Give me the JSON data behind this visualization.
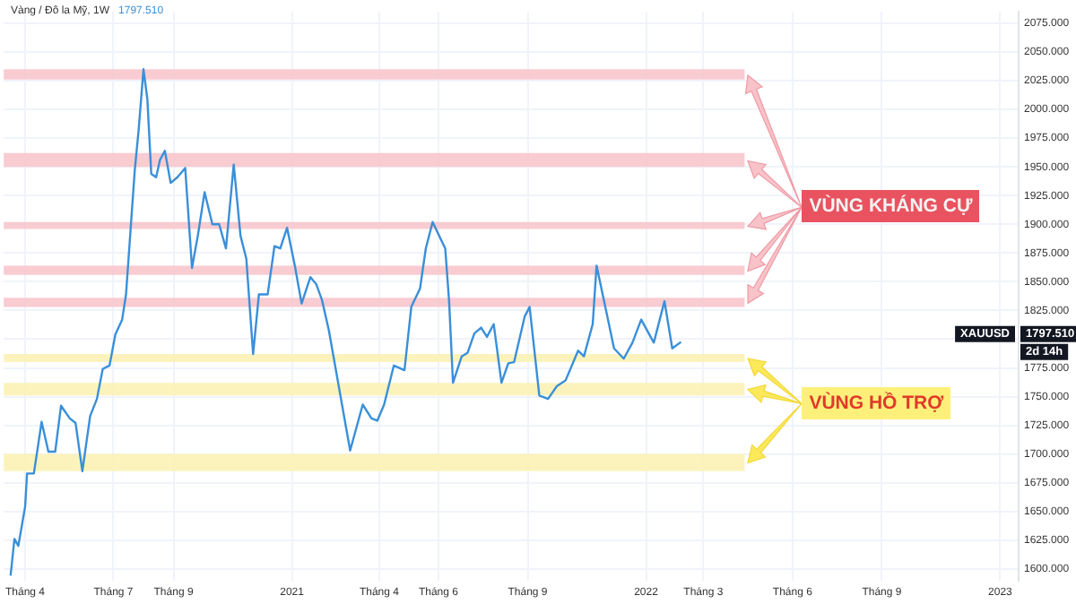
{
  "chart_data": {
    "type": "line",
    "title": "Vàng / Đô la Mỹ, 1W",
    "subtitle": "1797.510",
    "x": [
      "2020-03-17",
      "2020-03-21",
      "2020-03-25",
      "2020-04-01",
      "2020-04-03",
      "2020-04-10",
      "2020-04-18",
      "2020-04-25",
      "2020-05-02",
      "2020-05-08",
      "2020-05-17",
      "2020-05-23",
      "2020-05-30",
      "2020-06-07",
      "2020-06-14",
      "2020-06-20",
      "2020-06-27",
      "2020-07-03",
      "2020-07-10",
      "2020-07-14",
      "2020-07-23",
      "2020-07-27",
      "2020-08-01",
      "2020-08-05",
      "2020-08-09",
      "2020-08-14",
      "2020-08-18",
      "2020-08-23",
      "2020-08-29",
      "2020-09-05",
      "2020-09-13",
      "2020-09-20",
      "2020-09-26",
      "2020-10-03",
      "2020-10-11",
      "2020-10-18",
      "2020-10-25",
      "2020-11-02",
      "2020-11-09",
      "2020-11-15",
      "2020-11-22",
      "2020-11-28",
      "2020-12-07",
      "2020-12-14",
      "2020-12-20",
      "2020-12-27",
      "2021-01-04",
      "2021-01-11",
      "2021-01-20",
      "2021-01-26",
      "2021-02-01",
      "2021-02-08",
      "2021-03-02",
      "2021-03-15",
      "2021-03-24",
      "2021-03-30",
      "2021-04-06",
      "2021-04-16",
      "2021-04-27",
      "2021-05-04",
      "2021-05-13",
      "2021-05-19",
      "2021-05-26",
      "2021-06-08",
      "2021-06-12",
      "2021-06-16",
      "2021-06-25",
      "2021-07-01",
      "2021-07-08",
      "2021-07-15",
      "2021-07-21",
      "2021-07-28",
      "2021-08-05",
      "2021-08-12",
      "2021-08-18",
      "2021-08-29",
      "2021-09-03",
      "2021-09-13",
      "2021-09-22",
      "2021-10-01",
      "2021-10-10",
      "2021-10-23",
      "2021-10-29",
      "2021-11-07",
      "2021-11-11",
      "2021-11-20",
      "2021-11-29",
      "2021-12-09",
      "2021-12-18",
      "2021-12-27",
      "2022-01-09",
      "2022-01-20",
      "2022-01-28",
      "2022-02-06"
    ],
    "series": [
      {
        "color": "#3a8fd9",
        "values": [
          1594,
          1626,
          1620,
          1654,
          1683,
          1683,
          1728,
          1702,
          1702,
          1742,
          1731,
          1727,
          1685,
          1733,
          1748,
          1774,
          1777,
          1804,
          1817,
          1839,
          1947,
          1982,
          2035,
          2009,
          1944,
          1941,
          1956,
          1964,
          1936,
          1941,
          1949,
          1862,
          1890,
          1928,
          1900,
          1900,
          1879,
          1952,
          1890,
          1870,
          1787,
          1839,
          1839,
          1881,
          1879,
          1897,
          1864,
          1831,
          1854,
          1848,
          1834,
          1808,
          1703,
          1743,
          1731,
          1729,
          1743,
          1777,
          1773,
          1828,
          1844,
          1879,
          1902,
          1879,
          1833,
          1762,
          1785,
          1788,
          1805,
          1810,
          1802,
          1813,
          1762,
          1779,
          1780,
          1820,
          1828,
          1751,
          1748,
          1759,
          1764,
          1790,
          1785,
          1813,
          1864,
          1828,
          1792,
          1783,
          1797,
          1817,
          1797,
          1833,
          1792,
          1797.51
        ]
      }
    ],
    "xlim": [
      "2020-03-10",
      "2023-01-20"
    ],
    "xticks": [
      {
        "value": "2020-04-01",
        "label": "Tháng 4"
      },
      {
        "value": "2020-07-01",
        "label": "Tháng 7"
      },
      {
        "value": "2020-09-01",
        "label": "Tháng 9"
      },
      {
        "value": "2021-01-01",
        "label": "2021"
      },
      {
        "value": "2021-04-01",
        "label": "Tháng 4"
      },
      {
        "value": "2021-06-01",
        "label": "Tháng 6"
      },
      {
        "value": "2021-09-01",
        "label": "Tháng 9"
      },
      {
        "value": "2022-01-01",
        "label": "2022"
      },
      {
        "value": "2022-03-01",
        "label": "Tháng 3"
      },
      {
        "value": "2022-06-01",
        "label": "Tháng 6"
      },
      {
        "value": "2022-09-01",
        "label": "Tháng 9"
      },
      {
        "value": "2023-01-01",
        "label": "2023"
      }
    ],
    "ylim": [
      1590,
      2085
    ],
    "yticks": [
      {
        "value": 1600,
        "label": "1600.000"
      },
      {
        "value": 1625,
        "label": "1625.000"
      },
      {
        "value": 1650,
        "label": "1650.000"
      },
      {
        "value": 1675,
        "label": "1675.000"
      },
      {
        "value": 1700,
        "label": "1700.000"
      },
      {
        "value": 1725,
        "label": "1725.000"
      },
      {
        "value": 1750,
        "label": "1750.000"
      },
      {
        "value": 1775,
        "label": "1775.000"
      },
      {
        "value": 1800,
        "label": null
      },
      {
        "value": 1825,
        "label": "1825.000"
      },
      {
        "value": 1850,
        "label": "1850.000"
      },
      {
        "value": 1875,
        "label": "1875.000"
      },
      {
        "value": 1900,
        "label": "1900.000"
      },
      {
        "value": 1925,
        "label": "1925.000"
      },
      {
        "value": 1950,
        "label": "1950.000"
      },
      {
        "value": 1975,
        "label": "1975.000"
      },
      {
        "value": 2000,
        "label": "2000.000"
      },
      {
        "value": 2025,
        "label": "2025.000"
      },
      {
        "value": 2050,
        "label": "2050.000"
      },
      {
        "value": 2075,
        "label": "2075.000"
      }
    ],
    "bands": [
      {
        "axis": "y",
        "from": 2026,
        "to": 2035,
        "color": "#f7c3c9"
      },
      {
        "axis": "y",
        "from": 1950,
        "to": 1962,
        "color": "#f7c3c9"
      },
      {
        "axis": "y",
        "from": 1896,
        "to": 1902,
        "color": "#f7c3c9"
      },
      {
        "axis": "y",
        "from": 1856,
        "to": 1864,
        "color": "#f7c3c9"
      },
      {
        "axis": "y",
        "from": 1828,
        "to": 1836,
        "color": "#f7c3c9"
      },
      {
        "axis": "y",
        "from": 1780,
        "to": 1787,
        "color": "#fbf1b0"
      },
      {
        "axis": "y",
        "from": 1751,
        "to": 1762,
        "color": "#fbf1b0"
      },
      {
        "axis": "y",
        "from": 1685,
        "to": 1700,
        "color": "#fbf1b0"
      }
    ],
    "annotations": [
      "VÙNG KHÁNG CỰ",
      "VÙNG HỒ TRỢ",
      "XAUUSD",
      "1797.510",
      "2d 14h"
    ],
    "grid": true,
    "legend": false,
    "marker": "none"
  }
}
